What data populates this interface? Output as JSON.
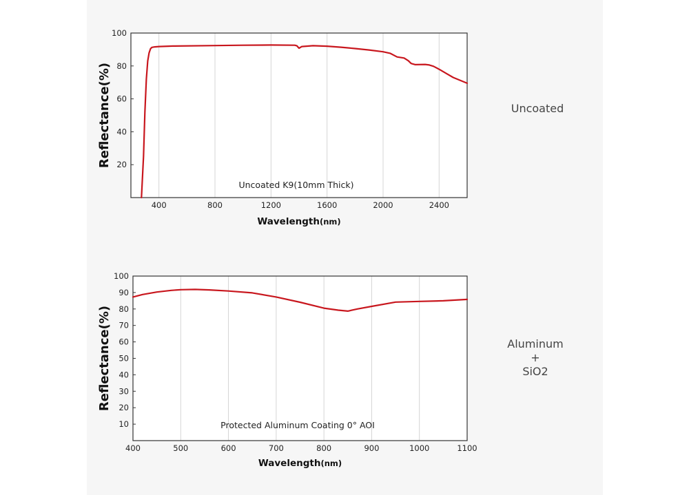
{
  "chart_data": [
    {
      "type": "line",
      "annotation": "Uncoated K9(10mm Thick)",
      "xlabel": "Wavelength",
      "xlabel_unit": "(nm)",
      "ylabel": "Reflectance(%)",
      "xlim": [
        200,
        2600
      ],
      "ylim": [
        0,
        100
      ],
      "xticks": [
        400,
        800,
        1200,
        1600,
        2000,
        2400
      ],
      "yticks": [
        20,
        40,
        60,
        80,
        100
      ],
      "grid": "vertical",
      "line_color": "#c8161d",
      "side_label": [
        "Uncoated"
      ],
      "series": [
        {
          "x": [
            275,
            290,
            300,
            310,
            320,
            330,
            340,
            350,
            370,
            400,
            500,
            800,
            1000,
            1200,
            1370,
            1385,
            1400,
            1420,
            1500,
            1600,
            1700,
            1800,
            1900,
            2000,
            2050,
            2100,
            2150,
            2180,
            2200,
            2230,
            2300,
            2330,
            2360,
            2400,
            2450,
            2500,
            2600
          ],
          "y": [
            0,
            25,
            52,
            72,
            83,
            88,
            90.5,
            91.3,
            91.6,
            91.8,
            92.1,
            92.4,
            92.6,
            92.7,
            92.6,
            92.2,
            90.8,
            91.8,
            92.3,
            92.0,
            91.4,
            90.6,
            89.7,
            88.6,
            87.7,
            85.5,
            84.8,
            83.2,
            81.5,
            80.8,
            80.9,
            80.6,
            79.8,
            78.0,
            75.5,
            73.0,
            69.5
          ]
        }
      ]
    },
    {
      "type": "line",
      "annotation": "Protected Aluminum Coating  0°  AOI",
      "xlabel": "Wavelength",
      "xlabel_unit": "(nm)",
      "ylabel": "Reflectance(%)",
      "xlim": [
        400,
        1100
      ],
      "ylim": [
        0,
        100
      ],
      "xticks": [
        400,
        500,
        600,
        700,
        800,
        900,
        1000,
        1100
      ],
      "yticks": [
        10,
        20,
        30,
        40,
        50,
        60,
        70,
        80,
        90,
        100
      ],
      "grid": "vertical",
      "line_color": "#c8161d",
      "side_label": [
        "Aluminum",
        "+",
        "SiO2"
      ],
      "series": [
        {
          "x": [
            400,
            420,
            450,
            480,
            500,
            530,
            560,
            600,
            650,
            700,
            750,
            800,
            830,
            850,
            870,
            900,
            950,
            1000,
            1050,
            1100
          ],
          "y": [
            87.3,
            88.8,
            90.3,
            91.3,
            91.7,
            91.9,
            91.6,
            90.9,
            89.8,
            87.3,
            84.1,
            80.5,
            79.3,
            78.7,
            80.0,
            81.6,
            84.2,
            84.6,
            85.0,
            85.8
          ]
        }
      ]
    }
  ]
}
